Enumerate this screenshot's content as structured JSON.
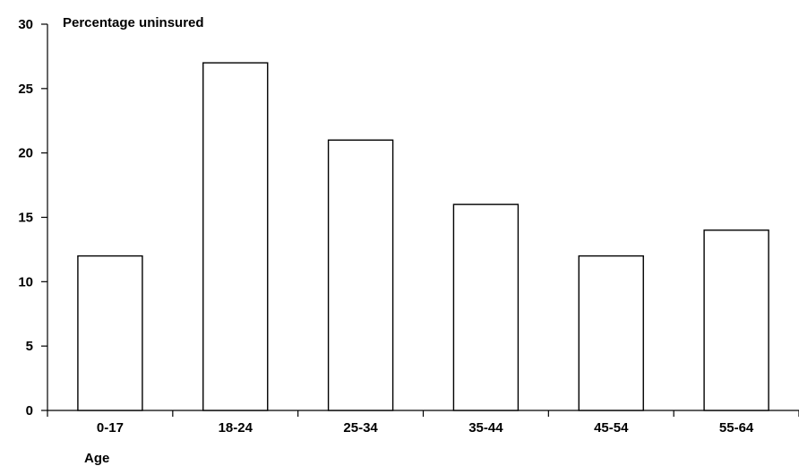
{
  "chart_data": {
    "type": "bar",
    "categories": [
      "0-17",
      "18-24",
      "25-34",
      "35-44",
      "45-54",
      "55-64"
    ],
    "values": [
      12,
      27,
      21,
      16,
      12,
      14
    ],
    "title": "",
    "xlabel": "Age",
    "ylabel": "Percentage uninsured",
    "ylim": [
      0,
      30
    ],
    "yticks": [
      0,
      5,
      10,
      15,
      20,
      25,
      30
    ],
    "grid": false,
    "legend": "none",
    "colors": {
      "bar_fill": "#ffffff",
      "bar_stroke": "#000000",
      "axis": "#000000"
    }
  }
}
